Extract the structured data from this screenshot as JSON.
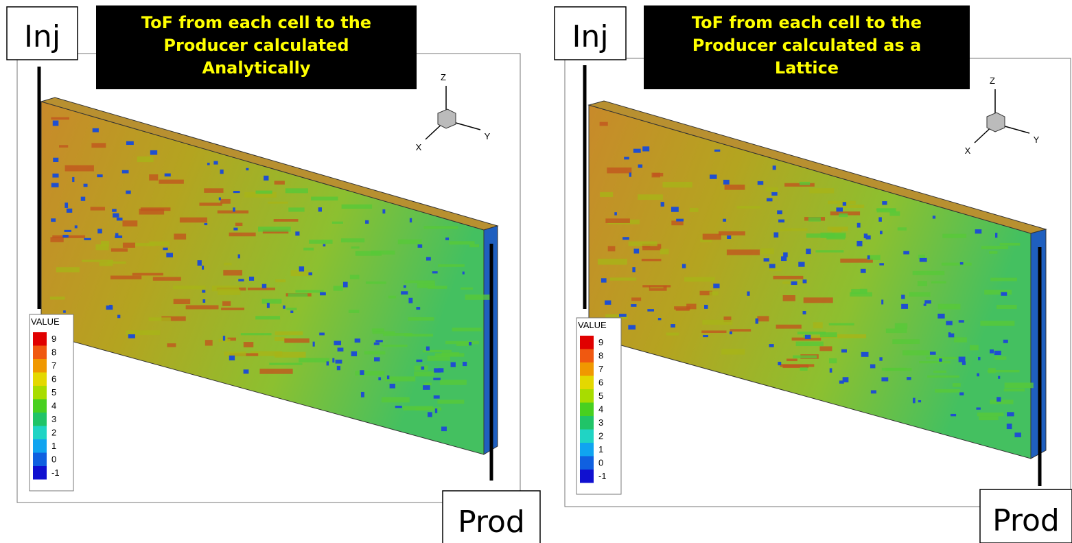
{
  "panels": [
    {
      "title": [
        "ToF from each cell to the",
        "Producer calculated",
        "Analytically"
      ],
      "injector": "Inj",
      "producer": "Prod",
      "axes": {
        "z": "Z",
        "x": "X",
        "y": "Y"
      },
      "legend": {
        "title": "VALUE",
        "labels": [
          9,
          8,
          7,
          6,
          5,
          4,
          3,
          2,
          1,
          0,
          -1
        ]
      }
    },
    {
      "title": [
        "ToF from each cell to the",
        "Producer calculated as a",
        "Lattice"
      ],
      "injector": "Inj",
      "producer": "Prod",
      "axes": {
        "z": "Z",
        "x": "X",
        "y": "Y"
      },
      "legend": {
        "title": "VALUE",
        "labels": [
          9,
          8,
          7,
          6,
          5,
          4,
          3,
          2,
          1,
          0,
          -1
        ]
      }
    }
  ]
}
